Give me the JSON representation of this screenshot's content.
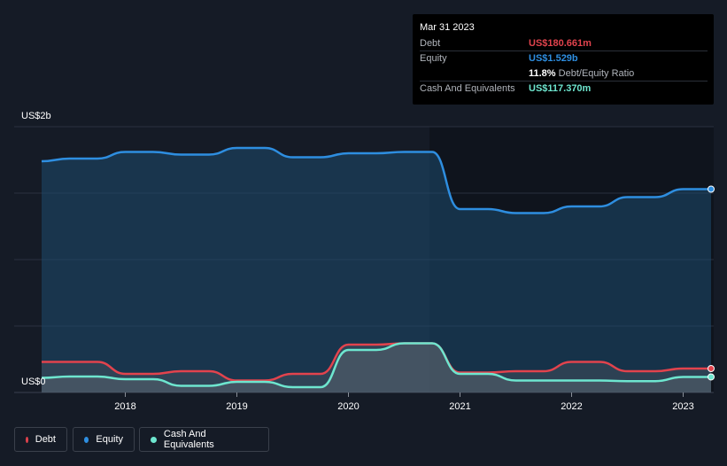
{
  "tooltip": {
    "date": "Mar 31 2023",
    "debt_label": "Debt",
    "debt_value": "US$180.661m",
    "equity_label": "Equity",
    "equity_value": "US$1.529b",
    "ratio_value": "11.8%",
    "ratio_label": "Debt/Equity Ratio",
    "cash_label": "Cash And Equivalents",
    "cash_value": "US$117.370m"
  },
  "colors": {
    "debt": "#e2434d",
    "equity": "#2e8ee0",
    "cash": "#6ee6cf",
    "background": "#151b26"
  },
  "legend": {
    "debt": "Debt",
    "equity": "Equity",
    "cash": "Cash And Equivalents"
  },
  "chart_data": {
    "type": "area",
    "title": "",
    "ylabel": "",
    "y_top_label": "US$2b",
    "y_bottom_label": "US$0",
    "ylim": [
      0,
      2.0
    ],
    "xlim": [
      2017.2,
      2023.25
    ],
    "x_ticks": [
      "2018",
      "2019",
      "2020",
      "2021",
      "2022",
      "2023"
    ],
    "grid": true,
    "legend_position": "bottom-left",
    "units": "US$ billions",
    "series": [
      {
        "name": "Equity",
        "x": [
          2017.25,
          2017.5,
          2017.75,
          2018.0,
          2018.25,
          2018.5,
          2018.75,
          2019.0,
          2019.25,
          2019.5,
          2019.75,
          2020.0,
          2020.25,
          2020.5,
          2020.75,
          2021.0,
          2021.25,
          2021.5,
          2021.75,
          2022.0,
          2022.25,
          2022.5,
          2022.75,
          2023.0,
          2023.25
        ],
        "values": [
          1.74,
          1.76,
          1.76,
          1.81,
          1.81,
          1.79,
          1.79,
          1.84,
          1.84,
          1.77,
          1.77,
          1.8,
          1.8,
          1.81,
          1.81,
          1.38,
          1.38,
          1.35,
          1.35,
          1.4,
          1.4,
          1.47,
          1.47,
          1.53,
          1.53
        ]
      },
      {
        "name": "Debt",
        "x": [
          2017.25,
          2017.5,
          2017.75,
          2018.0,
          2018.25,
          2018.5,
          2018.75,
          2019.0,
          2019.25,
          2019.5,
          2019.75,
          2020.0,
          2020.25,
          2020.5,
          2020.75,
          2021.0,
          2021.25,
          2021.5,
          2021.75,
          2022.0,
          2022.25,
          2022.5,
          2022.75,
          2023.0,
          2023.25
        ],
        "values": [
          0.23,
          0.23,
          0.23,
          0.14,
          0.14,
          0.16,
          0.16,
          0.09,
          0.09,
          0.14,
          0.14,
          0.36,
          0.36,
          0.37,
          0.37,
          0.15,
          0.15,
          0.16,
          0.16,
          0.23,
          0.23,
          0.16,
          0.16,
          0.18,
          0.18
        ]
      },
      {
        "name": "Cash And Equivalents",
        "x": [
          2017.25,
          2017.5,
          2017.75,
          2018.0,
          2018.25,
          2018.5,
          2018.75,
          2019.0,
          2019.25,
          2019.5,
          2019.75,
          2020.0,
          2020.25,
          2020.5,
          2020.75,
          2021.0,
          2021.25,
          2021.5,
          2021.75,
          2022.0,
          2022.25,
          2022.5,
          2022.75,
          2023.0,
          2023.25
        ],
        "values": [
          0.11,
          0.12,
          0.12,
          0.1,
          0.1,
          0.05,
          0.05,
          0.08,
          0.08,
          0.04,
          0.04,
          0.32,
          0.32,
          0.37,
          0.37,
          0.14,
          0.14,
          0.09,
          0.09,
          0.09,
          0.09,
          0.085,
          0.085,
          0.117,
          0.117
        ]
      }
    ]
  }
}
